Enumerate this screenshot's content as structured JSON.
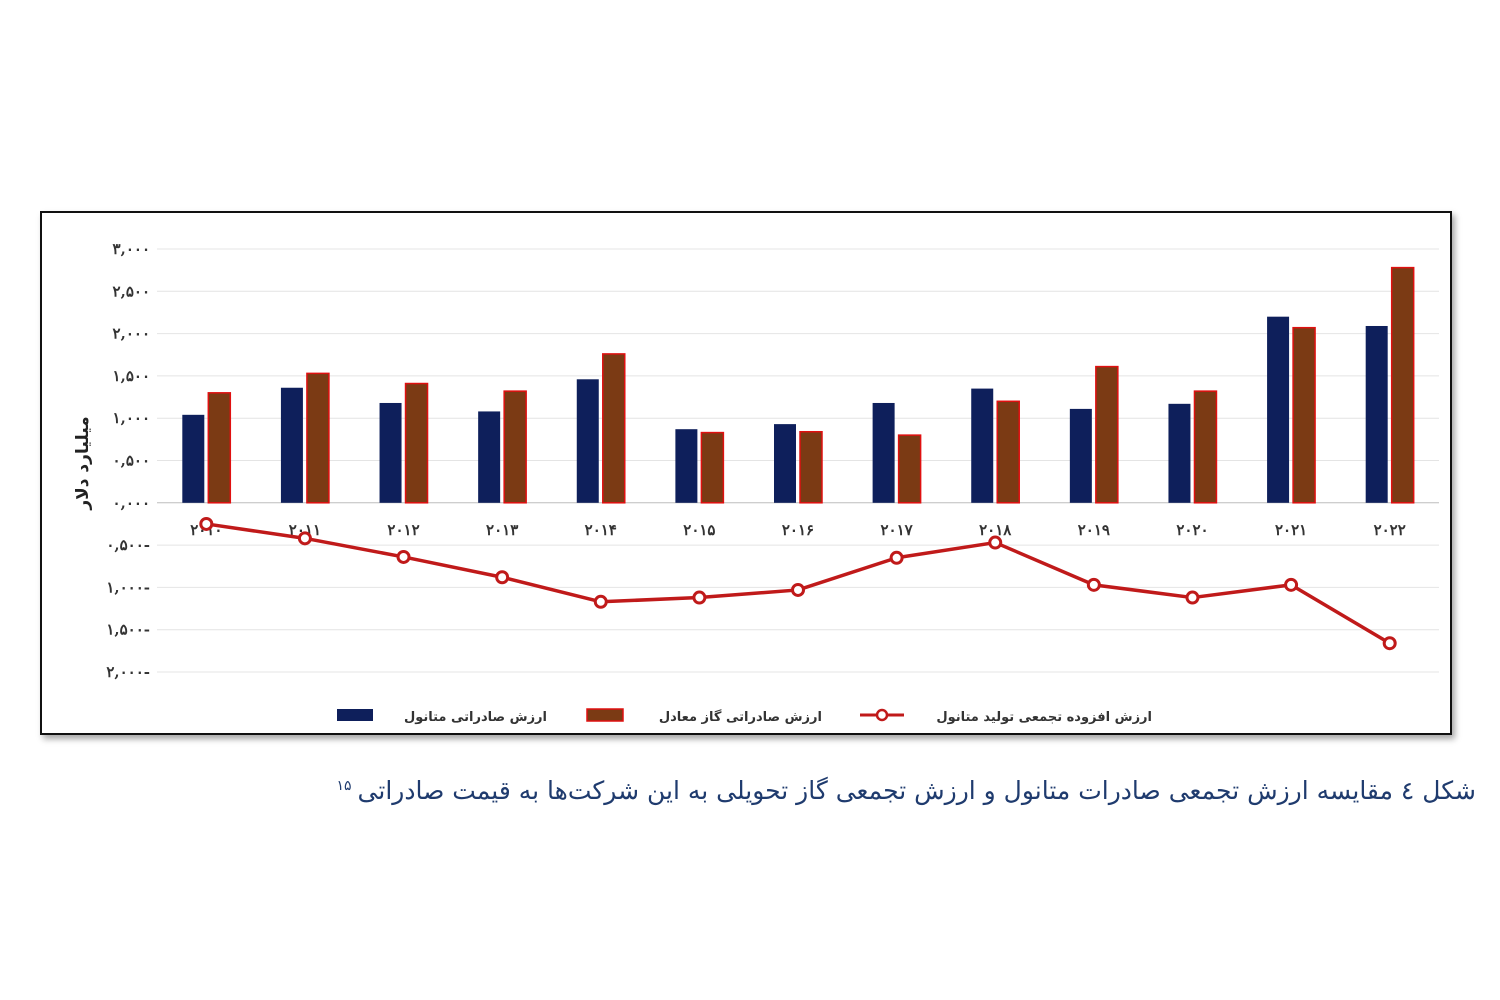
{
  "caption": {
    "text": "شکل ٤ مقایسه ارزش تجمعی صادرات متانول و ارزش تجمعی گاز تحویلی به این شرکت‌ها به قیمت صادراتی",
    "footnote": "۱۵"
  },
  "chart_data": {
    "type": "bar",
    "title": "",
    "xlabel": "",
    "ylabel": "میلیارد دلار",
    "ylim": [
      -2000,
      3000
    ],
    "yticks": [
      {
        "value": 3000,
        "label": "۳,۰۰۰"
      },
      {
        "value": 2500,
        "label": "۲,۵۰۰"
      },
      {
        "value": 2000,
        "label": "۲,۰۰۰"
      },
      {
        "value": 1500,
        "label": "۱,۵۰۰"
      },
      {
        "value": 1000,
        "label": "۱,۰۰۰"
      },
      {
        "value": 500,
        "label": "۰,۵۰۰"
      },
      {
        "value": 0,
        "label": "۰,۰۰۰"
      },
      {
        "value": -500,
        "label": "۰,۵۰۰-"
      },
      {
        "value": -1000,
        "label": "۱,۰۰۰-"
      },
      {
        "value": -1500,
        "label": "۱,۵۰۰-"
      },
      {
        "value": -2000,
        "label": "۲,۰۰۰-"
      }
    ],
    "categories": [
      "۲۰۱۰",
      "۲۰۱۱",
      "۲۰۱۲",
      "۲۰۱۳",
      "۲۰۱۴",
      "۲۰۱۵",
      "۲۰۱۶",
      "۲۰۱۷",
      "۲۰۱۸",
      "۲۰۱۹",
      "۲۰۲۰",
      "۲۰۲۱",
      "۲۰۲۲"
    ],
    "grid": true,
    "legend_position": "bottom",
    "series": [
      {
        "name": "ارزش صادراتی متانول",
        "kind": "bar",
        "color": "#0e1f5b",
        "values": [
          1040,
          1360,
          1180,
          1080,
          1460,
          870,
          930,
          1180,
          1350,
          1110,
          1170,
          2200,
          2090
        ]
      },
      {
        "name": "ارزش صادراتی گاز معادل",
        "kind": "bar",
        "color": "#7b3a14",
        "edge_color": "#e01010",
        "values": [
          1300,
          1530,
          1410,
          1320,
          1760,
          830,
          840,
          800,
          1200,
          1610,
          1320,
          2070,
          2780
        ]
      },
      {
        "name": "ارزش افزوده تجمعی تولید متانول",
        "kind": "line",
        "color": "#c01a1a",
        "values": [
          -250,
          -420,
          -640,
          -880,
          -1170,
          -1120,
          -1030,
          -650,
          -470,
          -970,
          -1120,
          -970,
          -1660
        ]
      }
    ]
  }
}
